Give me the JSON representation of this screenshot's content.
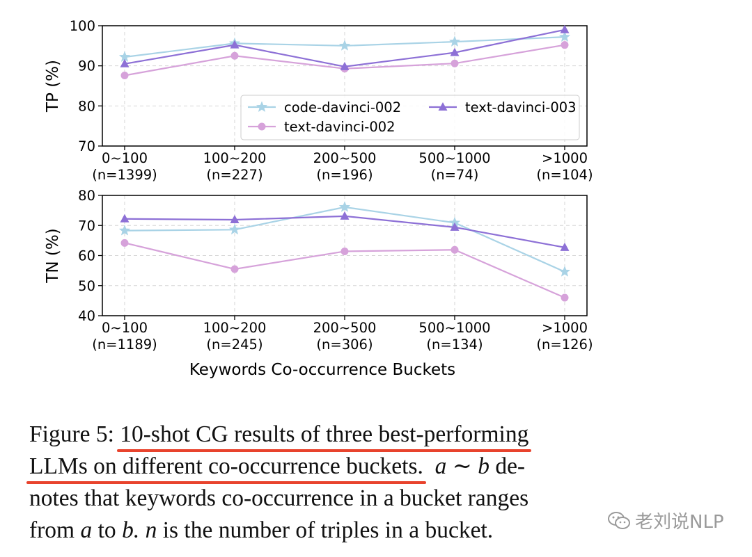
{
  "chart_data": [
    {
      "type": "line",
      "ylabel": "TP (%)",
      "xlabel": "",
      "ylim": [
        70,
        100
      ],
      "yticks": [
        70,
        80,
        90,
        100
      ],
      "grid": true,
      "legend_position": "lower-right",
      "categories": [
        "0~100",
        "100~200",
        "200~500",
        "500~1000",
        ">1000"
      ],
      "category_counts": [
        "(n=1399)",
        "(n=227)",
        "(n=196)",
        "(n=74)",
        "(n=104)"
      ],
      "series": [
        {
          "name": "code-davinci-002",
          "color": "#a9d3e6",
          "marker": "star",
          "values": [
            92.2,
            95.6,
            95.0,
            96.0,
            97.2
          ]
        },
        {
          "name": "text-davinci-002",
          "color": "#d6a2da",
          "marker": "circle",
          "values": [
            87.6,
            92.5,
            89.3,
            90.6,
            95.2
          ]
        },
        {
          "name": "text-davinci-003",
          "color": "#8d70d6",
          "marker": "triangle",
          "values": [
            90.5,
            95.2,
            89.8,
            93.3,
            99.0
          ]
        }
      ]
    },
    {
      "type": "line",
      "ylabel": "TN (%)",
      "xlabel": "Keywords Co-occurrence Buckets",
      "ylim": [
        40,
        80
      ],
      "yticks": [
        40,
        50,
        60,
        70,
        80
      ],
      "grid": true,
      "categories": [
        "0~100",
        "100~200",
        "200~500",
        "500~1000",
        ">1000"
      ],
      "category_counts": [
        "(n=1189)",
        "(n=245)",
        "(n=306)",
        "(n=134)",
        "(n=126)"
      ],
      "series": [
        {
          "name": "code-davinci-002",
          "color": "#a9d3e6",
          "marker": "star",
          "values": [
            68.3,
            68.6,
            76.1,
            70.9,
            54.6
          ]
        },
        {
          "name": "text-davinci-002",
          "color": "#d6a2da",
          "marker": "circle",
          "values": [
            64.2,
            55.5,
            61.4,
            61.9,
            46.0
          ]
        },
        {
          "name": "text-davinci-003",
          "color": "#8d70d6",
          "marker": "triangle",
          "values": [
            72.2,
            71.9,
            73.1,
            69.4,
            62.7
          ]
        }
      ]
    }
  ],
  "caption": {
    "line1_prefix": "Figure 5: ",
    "line1_highlight": "10-shot CG results of three best-performing",
    "line2_highlight": "LLMs on different co-occurrence buckets.",
    "line2_a": "a",
    "line2_tilde": "∼",
    "line2_b": "b",
    "line2_suffix": "de-",
    "line3": "notes that keywords co-occurrence in a bucket ranges",
    "line4_from": "from",
    "line4_a": "a",
    "line4_to": "to",
    "line4_b": "b.",
    "line4_n": "n",
    "line4_rest": "is the number of triples in a bucket."
  },
  "watermark": {
    "icon": "wechat-icon",
    "text": "老刘说NLP"
  }
}
